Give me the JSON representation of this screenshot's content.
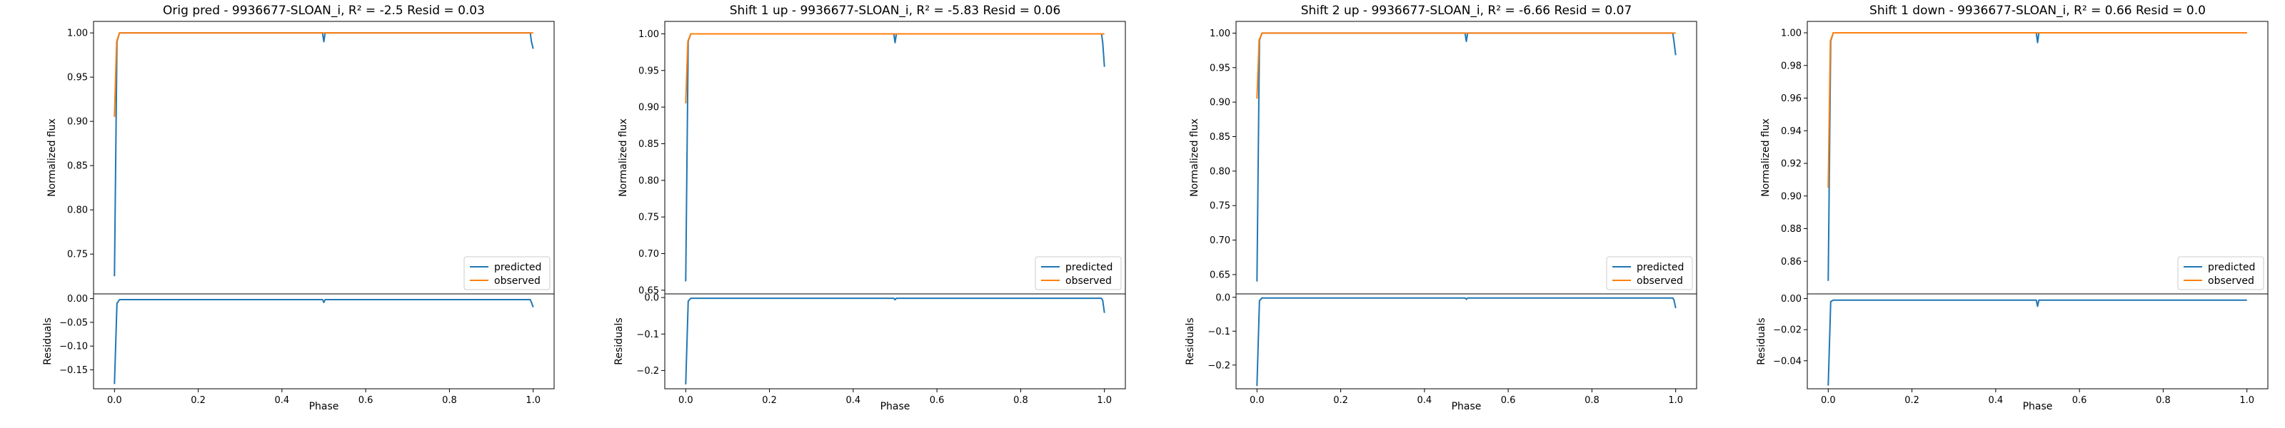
{
  "colors": {
    "predicted": "#1f77b4",
    "observed": "#ff7f0e",
    "axes": "#000000",
    "legend_border": "#cccccc"
  },
  "chart_data": [
    {
      "type": "line",
      "title": "Orig pred - 9936677-SLOAN_i, R² = -2.5 Resid = 0.03",
      "ylabel_top": "Normalized flux",
      "ylabel_bottom": "Residuals",
      "xlabel": "Phase",
      "legend": [
        "predicted",
        "observed"
      ],
      "legend_placement": "lower-right",
      "xlim": [
        -0.05,
        1.05
      ],
      "x_ticks": [
        0.0,
        0.2,
        0.4,
        0.6,
        0.8,
        1.0
      ],
      "x_tick_labels": [
        "0.0",
        "0.2",
        "0.4",
        "0.6",
        "0.8",
        "1.0"
      ],
      "top": {
        "ylim": [
          0.705,
          1.013
        ],
        "y_ticks": [
          0.75,
          0.8,
          0.85,
          0.9,
          0.95,
          1.0
        ],
        "y_tick_labels": [
          "0.75",
          "0.80",
          "0.85",
          "0.90",
          "0.95",
          "1.00"
        ],
        "series": [
          {
            "name": "predicted",
            "x": [
              0.0,
              0.006,
              0.012,
              0.03,
              0.497,
              0.5,
              0.503,
              0.993,
              0.996,
              1.0
            ],
            "y": [
              0.725,
              0.99,
              1.0,
              1.0,
              1.0,
              0.99,
              1.0,
              1.0,
              0.99,
              0.982
            ]
          },
          {
            "name": "observed",
            "x": [
              0.0,
              0.005,
              0.012,
              0.03,
              0.5,
              1.0
            ],
            "y": [
              0.905,
              0.99,
              1.0,
              1.0,
              1.0,
              1.0
            ]
          }
        ]
      },
      "bottom": {
        "ylim": [
          -0.19,
          0.01
        ],
        "y_ticks": [
          0.0,
          -0.05,
          -0.1,
          -0.15
        ],
        "y_tick_labels": [
          "0.00",
          "−0.05",
          "−0.10",
          "−0.15"
        ],
        "series": [
          {
            "name": "residuals",
            "x": [
              0.0,
              0.006,
              0.012,
              0.03,
              0.497,
              0.5,
              0.503,
              0.993,
              0.996,
              1.0
            ],
            "y": [
              -0.18,
              -0.01,
              -0.002,
              -0.002,
              -0.002,
              -0.008,
              -0.002,
              -0.002,
              -0.008,
              -0.018
            ]
          }
        ]
      }
    },
    {
      "type": "line",
      "title": "Shift 1 up - 9936677-SLOAN_i, R² = -5.83 Resid = 0.06",
      "ylabel_top": "Normalized flux",
      "ylabel_bottom": "Residuals",
      "xlabel": "Phase",
      "legend": [
        "predicted",
        "observed"
      ],
      "legend_placement": "lower-right",
      "xlim": [
        -0.05,
        1.05
      ],
      "x_ticks": [
        0.0,
        0.2,
        0.4,
        0.6,
        0.8,
        1.0
      ],
      "x_tick_labels": [
        "0.0",
        "0.2",
        "0.4",
        "0.6",
        "0.8",
        "1.0"
      ],
      "top": {
        "ylim": [
          0.645,
          1.017
        ],
        "y_ticks": [
          0.65,
          0.7,
          0.75,
          0.8,
          0.85,
          0.9,
          0.95,
          1.0
        ],
        "y_tick_labels": [
          "0.65",
          "0.70",
          "0.75",
          "0.80",
          "0.85",
          "0.90",
          "0.95",
          "1.00"
        ],
        "series": [
          {
            "name": "predicted",
            "x": [
              0.0,
              0.006,
              0.012,
              0.03,
              0.497,
              0.5,
              0.503,
              0.993,
              0.996,
              1.0
            ],
            "y": [
              0.662,
              0.99,
              1.0,
              1.0,
              1.0,
              0.988,
              1.0,
              1.0,
              0.988,
              0.955
            ]
          },
          {
            "name": "observed",
            "x": [
              0.0,
              0.005,
              0.012,
              0.03,
              0.5,
              1.0
            ],
            "y": [
              0.905,
              0.99,
              1.0,
              1.0,
              1.0,
              1.0
            ]
          }
        ]
      },
      "bottom": {
        "ylim": [
          -0.25,
          0.01
        ],
        "y_ticks": [
          0.0,
          -0.1,
          -0.2
        ],
        "y_tick_labels": [
          "0.0",
          "−0.1",
          "−0.2"
        ],
        "series": [
          {
            "name": "residuals",
            "x": [
              0.0,
              0.006,
              0.012,
              0.03,
              0.497,
              0.5,
              0.503,
              0.993,
              0.996,
              1.0
            ],
            "y": [
              -0.238,
              -0.01,
              -0.002,
              -0.002,
              -0.002,
              -0.006,
              -0.002,
              -0.002,
              -0.008,
              -0.042
            ]
          }
        ]
      }
    },
    {
      "type": "line",
      "title": "Shift 2 up - 9936677-SLOAN_i, R² = -6.66 Resid = 0.07",
      "ylabel_top": "Normalized flux",
      "ylabel_bottom": "Residuals",
      "xlabel": "Phase",
      "legend": [
        "predicted",
        "observed"
      ],
      "legend_placement": "lower-right",
      "xlim": [
        -0.05,
        1.05
      ],
      "x_ticks": [
        0.0,
        0.2,
        0.4,
        0.6,
        0.8,
        1.0
      ],
      "x_tick_labels": [
        "0.0",
        "0.2",
        "0.4",
        "0.6",
        "0.8",
        "1.0"
      ],
      "top": {
        "ylim": [
          0.622,
          1.017
        ],
        "y_ticks": [
          0.65,
          0.7,
          0.75,
          0.8,
          0.85,
          0.9,
          0.95,
          1.0
        ],
        "y_tick_labels": [
          "0.65",
          "0.70",
          "0.75",
          "0.80",
          "0.85",
          "0.90",
          "0.95",
          "1.00"
        ],
        "series": [
          {
            "name": "predicted",
            "x": [
              0.0,
              0.006,
              0.012,
              0.03,
              0.497,
              0.5,
              0.503,
              0.993,
              0.996,
              1.0
            ],
            "y": [
              0.64,
              0.99,
              1.0,
              1.0,
              1.0,
              0.988,
              1.0,
              1.0,
              0.988,
              0.968
            ]
          },
          {
            "name": "observed",
            "x": [
              0.0,
              0.005,
              0.012,
              0.03,
              0.5,
              1.0
            ],
            "y": [
              0.905,
              0.99,
              1.0,
              1.0,
              1.0,
              1.0
            ]
          }
        ]
      },
      "bottom": {
        "ylim": [
          -0.27,
          0.01
        ],
        "y_ticks": [
          0.0,
          -0.1,
          -0.2
        ],
        "y_tick_labels": [
          "0.0",
          "−0.1",
          "−0.2"
        ],
        "series": [
          {
            "name": "residuals",
            "x": [
              0.0,
              0.006,
              0.012,
              0.03,
              0.497,
              0.5,
              0.503,
              0.993,
              0.996,
              1.0
            ],
            "y": [
              -0.262,
              -0.01,
              -0.002,
              -0.002,
              -0.002,
              -0.006,
              -0.002,
              -0.002,
              -0.008,
              -0.032
            ]
          }
        ]
      }
    },
    {
      "type": "line",
      "title": "Shift 1 down - 9936677-SLOAN_i, R² = 0.66 Resid = 0.0",
      "ylabel_top": "Normalized flux",
      "ylabel_bottom": "Residuals",
      "xlabel": "Phase",
      "legend": [
        "predicted",
        "observed"
      ],
      "legend_placement": "lower-right",
      "xlim": [
        -0.05,
        1.05
      ],
      "x_ticks": [
        0.0,
        0.2,
        0.4,
        0.6,
        0.8,
        1.0
      ],
      "x_tick_labels": [
        "0.0",
        "0.2",
        "0.4",
        "0.6",
        "0.8",
        "1.0"
      ],
      "top": {
        "ylim": [
          0.84,
          1.007
        ],
        "y_ticks": [
          0.86,
          0.88,
          0.9,
          0.92,
          0.94,
          0.96,
          0.98,
          1.0
        ],
        "y_tick_labels": [
          "0.86",
          "0.88",
          "0.90",
          "0.92",
          "0.94",
          "0.96",
          "0.98",
          "1.00"
        ],
        "series": [
          {
            "name": "predicted",
            "x": [
              0.0,
              0.006,
              0.012,
              0.03,
              0.497,
              0.5,
              0.503,
              1.0
            ],
            "y": [
              0.848,
              0.995,
              1.0,
              1.0,
              1.0,
              0.994,
              1.0,
              1.0
            ]
          },
          {
            "name": "observed",
            "x": [
              0.0,
              0.005,
              0.012,
              0.03,
              0.5,
              1.0
            ],
            "y": [
              0.905,
              0.995,
              1.0,
              1.0,
              1.0,
              1.0
            ]
          }
        ]
      },
      "bottom": {
        "ylim": [
          -0.058,
          0.003
        ],
        "y_ticks": [
          0.0,
          -0.02,
          -0.04
        ],
        "y_tick_labels": [
          "0.00",
          "−0.02",
          "−0.04"
        ],
        "series": [
          {
            "name": "residuals",
            "x": [
              0.0,
              0.006,
              0.012,
              0.03,
              0.497,
              0.5,
              0.503,
              1.0
            ],
            "y": [
              -0.056,
              -0.002,
              -0.001,
              -0.001,
              -0.001,
              -0.005,
              -0.001,
              -0.001
            ]
          }
        ]
      }
    }
  ]
}
